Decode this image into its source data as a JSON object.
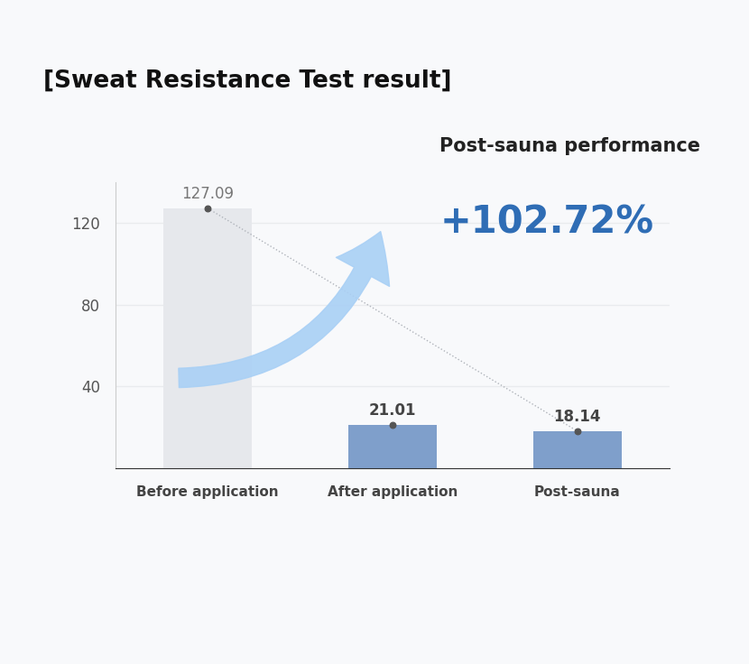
{
  "chart_data": {
    "type": "bar",
    "title": "[Sweat Resistance Test result]",
    "categories": [
      "Before application",
      "After application",
      "Post-sauna"
    ],
    "values": [
      127.09,
      21.01,
      18.14
    ],
    "colors": [
      "#e6e8ec",
      "#7f9fcb",
      "#7f9fcb"
    ],
    "ylim": [
      0,
      140
    ],
    "yticks": [
      40,
      80,
      120
    ],
    "grid": true,
    "data_labels": true,
    "annotations": [
      "Post-sauna performance",
      "+102.72%"
    ]
  }
}
